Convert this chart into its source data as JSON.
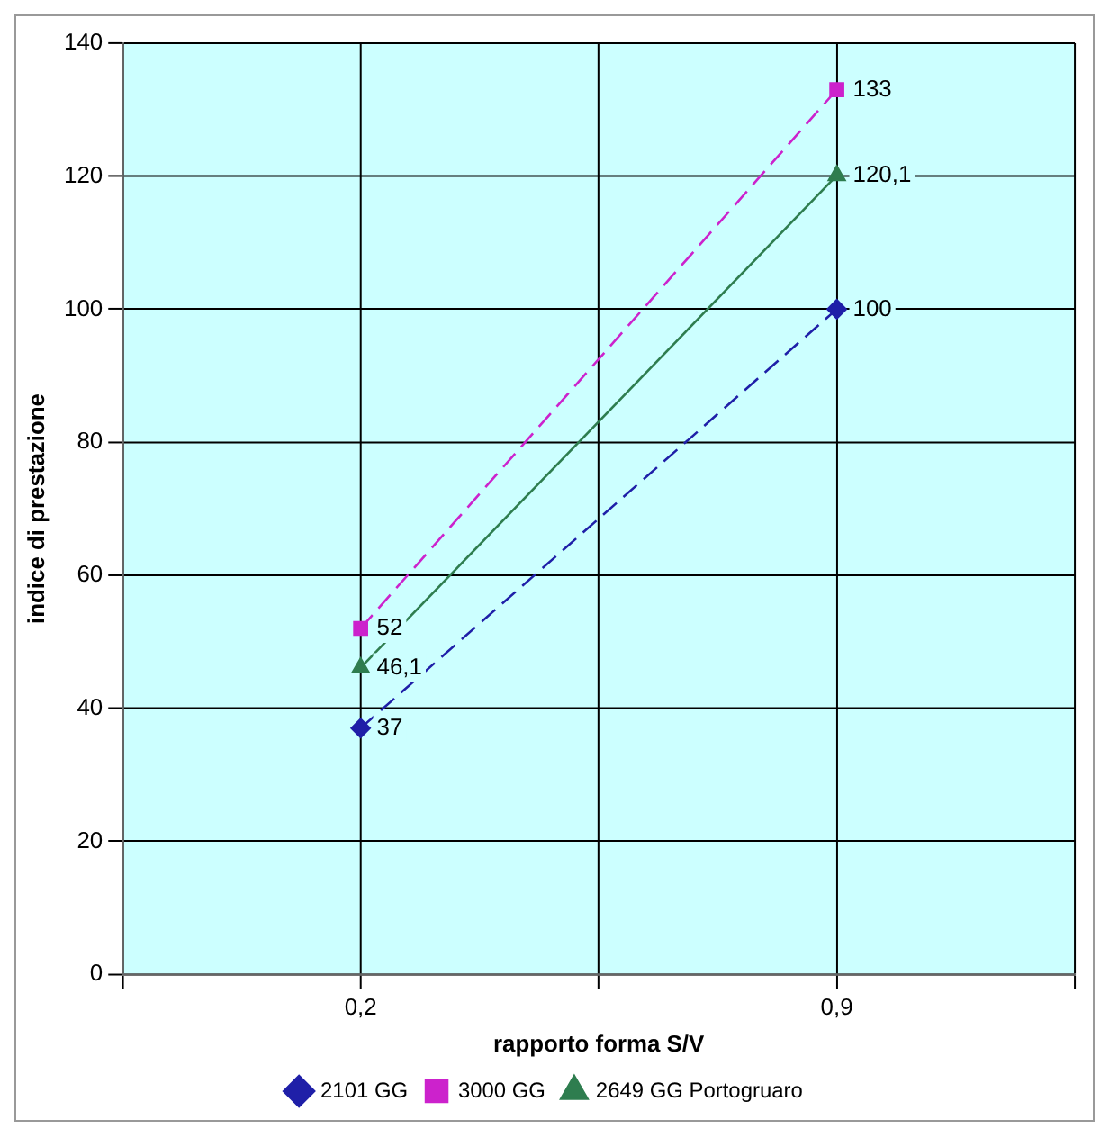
{
  "chart_data": {
    "type": "line",
    "xlabel": "rapporto forma S/V",
    "ylabel": "indice di prestazione",
    "categories": [
      null,
      "0,2",
      null,
      "0,9",
      null
    ],
    "series": [
      {
        "name": "2101 GG",
        "color": "#1f1fa8",
        "values": [
          null,
          37,
          null,
          100,
          null
        ],
        "marker": "diamond",
        "line_style": "dashed",
        "value_labels": [
          null,
          "37",
          null,
          "100",
          null
        ]
      },
      {
        "name": "3000 GG",
        "color": "#cc22cc",
        "values": [
          null,
          52,
          null,
          133,
          null
        ],
        "marker": "square",
        "line_style": "dashed",
        "value_labels": [
          null,
          "52",
          null,
          "133",
          null
        ]
      },
      {
        "name": "2649 GG Portogruaro",
        "color": "#2e7d4f",
        "values": [
          null,
          46.1,
          null,
          120.1,
          null
        ],
        "marker": "triangle",
        "line_style": "solid",
        "value_labels": [
          null,
          "46,1",
          null,
          "120,1",
          null
        ]
      }
    ],
    "ylim": [
      0,
      140
    ],
    "yticks": [
      0,
      20,
      40,
      60,
      80,
      100,
      120,
      140
    ],
    "grid": true,
    "legend": "bottom"
  }
}
